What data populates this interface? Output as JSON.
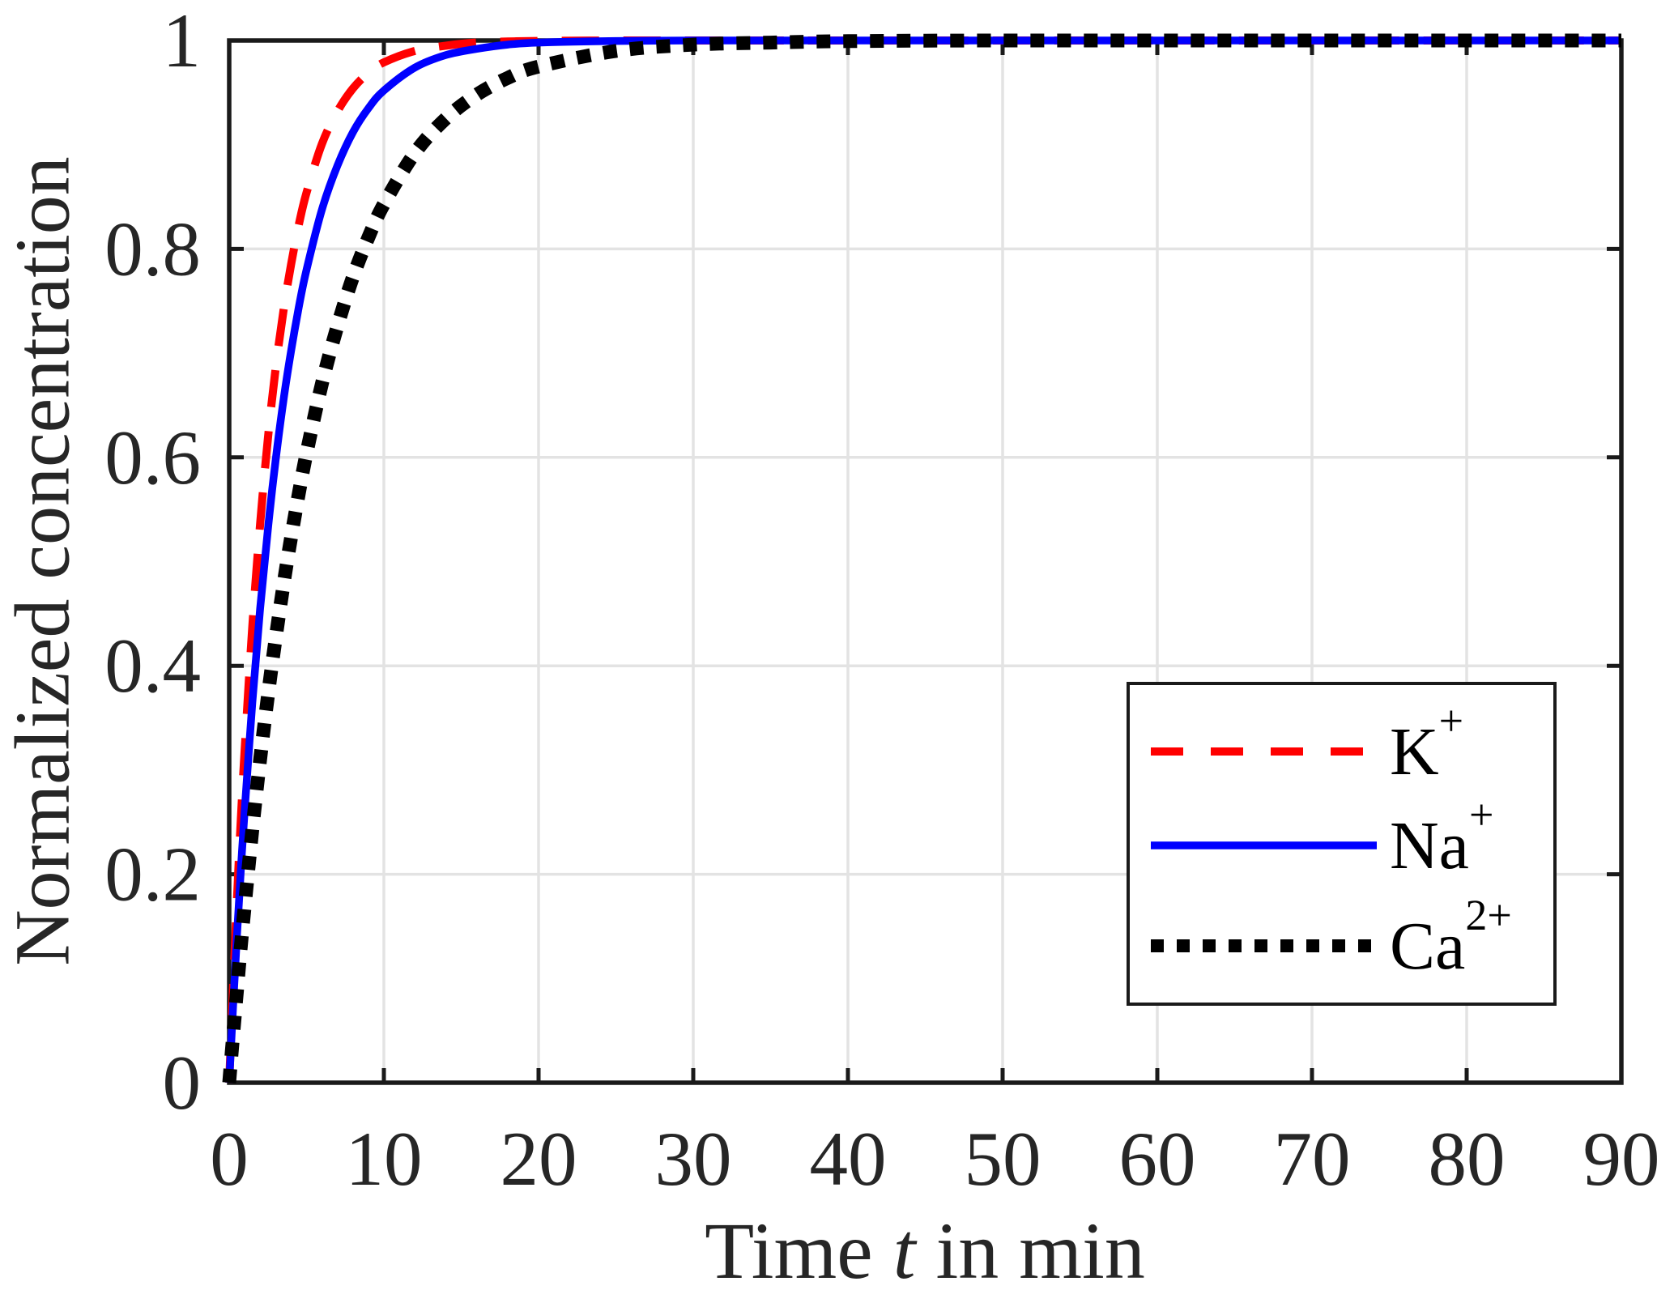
{
  "figure": {
    "background": "#ffffff",
    "axis_color": "#1a1a1a",
    "grid_color": "#e3e3e3",
    "tick_label_color": "#262626"
  },
  "chart_data": {
    "type": "line",
    "title": "",
    "xlabel": {
      "pre": "Time ",
      "var": "t",
      "post": " in min"
    },
    "ylabel": "Normalized concentration",
    "xlim": [
      0,
      90
    ],
    "ylim": [
      0,
      1
    ],
    "grid": "on",
    "xticks": {
      "values": [
        0,
        10,
        20,
        30,
        40,
        50,
        60,
        70,
        80,
        90
      ],
      "labels": [
        "0",
        "10",
        "20",
        "30",
        "40",
        "50",
        "60",
        "70",
        "80",
        "90"
      ]
    },
    "yticks": {
      "values": [
        0,
        0.2,
        0.4,
        0.6,
        0.8,
        1
      ],
      "labels": [
        "0",
        "0.2",
        "0.4",
        "0.6",
        "0.8",
        "1"
      ]
    },
    "legend": {
      "position": "inside-lower-right"
    },
    "x_sample_times": [
      0,
      0.25,
      0.5,
      0.75,
      1,
      1.5,
      2,
      2.5,
      3,
      3.5,
      4,
      4.5,
      5,
      6,
      7,
      8,
      9,
      10,
      12,
      14,
      16,
      18,
      20,
      25,
      30,
      35,
      40,
      50,
      60,
      70,
      80,
      90
    ],
    "series": [
      {
        "name": "K+",
        "label_base": "K",
        "label_sup": "+",
        "color": "#ff0000",
        "line_style": "dashed",
        "x": [
          0,
          0.25,
          0.5,
          0.75,
          1,
          1.5,
          2,
          2.5,
          3,
          3.5,
          4,
          4.5,
          5,
          6,
          7,
          8,
          9,
          10,
          12,
          14,
          16,
          18,
          20,
          25,
          30,
          35,
          40,
          50,
          60,
          70,
          80,
          90
        ],
        "y": [
          0,
          0.092,
          0.175,
          0.251,
          0.319,
          0.438,
          0.536,
          0.618,
          0.685,
          0.74,
          0.785,
          0.823,
          0.854,
          0.901,
          0.932,
          0.954,
          0.969,
          0.979,
          0.99,
          0.995,
          0.998,
          0.999,
          0.9995,
          1,
          1,
          1,
          1,
          1,
          1,
          1,
          1,
          1
        ]
      },
      {
        "name": "Na+",
        "label_base": "Na",
        "label_sup": "+",
        "color": "#0000ff",
        "line_style": "solid",
        "x": [
          0,
          0.25,
          0.5,
          0.75,
          1,
          1.5,
          2,
          2.5,
          3,
          3.5,
          4,
          4.5,
          5,
          6,
          7,
          8,
          9,
          10,
          12,
          14,
          16,
          18,
          20,
          25,
          30,
          35,
          40,
          50,
          60,
          70,
          80,
          90
        ],
        "y": [
          0,
          0.073,
          0.141,
          0.203,
          0.261,
          0.365,
          0.455,
          0.531,
          0.597,
          0.654,
          0.702,
          0.744,
          0.78,
          0.838,
          0.88,
          0.912,
          0.935,
          0.952,
          0.974,
          0.986,
          0.992,
          0.996,
          0.998,
          0.9995,
          1,
          1,
          1,
          1,
          1,
          1,
          1,
          1
        ]
      },
      {
        "name": "Ca2+",
        "label_base": "Ca",
        "label_sup": "2+",
        "color": "#000000",
        "line_style": "dotted",
        "x": [
          0,
          0.25,
          0.5,
          0.75,
          1,
          1.5,
          2,
          2.5,
          3,
          3.5,
          4,
          4.5,
          5,
          6,
          7,
          8,
          9,
          10,
          12,
          14,
          16,
          18,
          20,
          25,
          30,
          35,
          40,
          50,
          60,
          70,
          80,
          90
        ],
        "y": [
          0,
          0.045,
          0.088,
          0.13,
          0.169,
          0.243,
          0.31,
          0.371,
          0.426,
          0.477,
          0.523,
          0.565,
          0.604,
          0.671,
          0.726,
          0.773,
          0.811,
          0.843,
          0.892,
          0.925,
          0.948,
          0.964,
          0.975,
          0.99,
          0.996,
          0.998,
          0.9994,
          1,
          1,
          1,
          1,
          1
        ]
      }
    ]
  }
}
